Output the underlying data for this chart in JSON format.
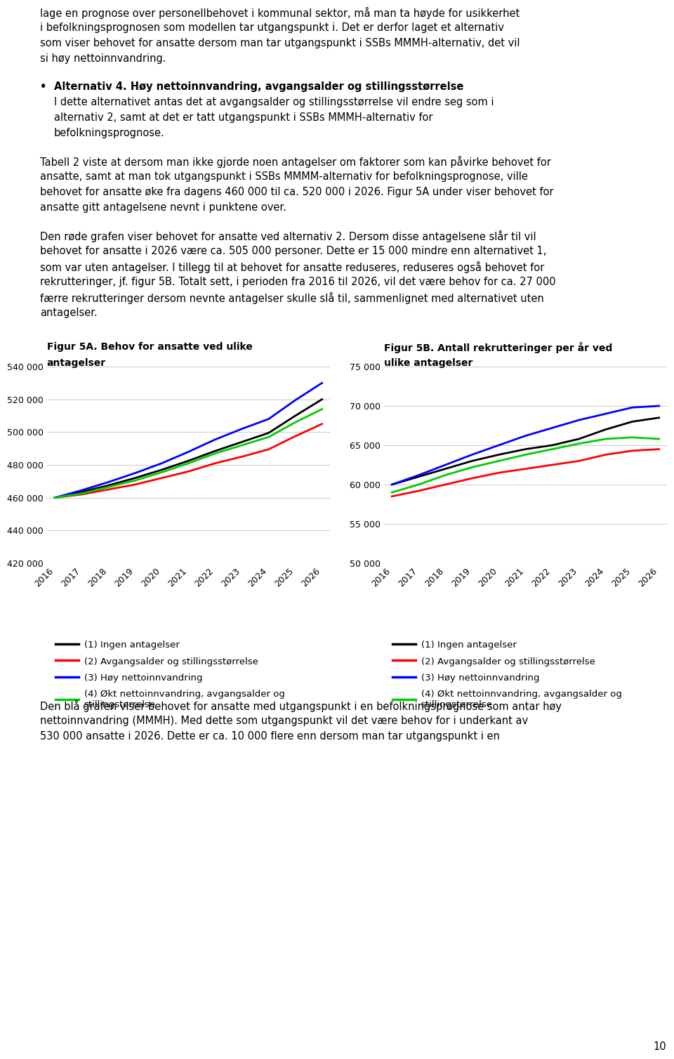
{
  "years": [
    2016,
    2017,
    2018,
    2019,
    2020,
    2021,
    2022,
    2023,
    2024,
    2025,
    2026
  ],
  "fig5a_title_line1": "Figur 5A. Behov for ansatte ved ulike",
  "fig5a_title_line2": "antagelser",
  "fig5a_ylim": [
    420000,
    540000
  ],
  "fig5a_yticks": [
    420000,
    440000,
    460000,
    480000,
    500000,
    520000,
    540000
  ],
  "fig5a_ytick_labels": [
    "420 000",
    "440 000",
    "460 000",
    "480 000",
    "500 000",
    "520 000",
    "540 000"
  ],
  "fig5a_line1": [
    460000,
    463500,
    467500,
    472000,
    477000,
    482500,
    488500,
    494000,
    499500,
    510000,
    520000
  ],
  "fig5a_line2": [
    460000,
    462000,
    465000,
    468000,
    472000,
    476000,
    481000,
    485000,
    489500,
    497500,
    505000
  ],
  "fig5a_line3": [
    460000,
    464500,
    469500,
    475000,
    481000,
    488000,
    495500,
    502000,
    508000,
    519500,
    530000
  ],
  "fig5a_line4": [
    460000,
    462500,
    466500,
    470500,
    475500,
    481000,
    487000,
    492000,
    497000,
    506000,
    514000
  ],
  "fig5b_title_line1": "Figur 5B. Antall rekrutteringer per år ved",
  "fig5b_title_line2": "ulike antagelser",
  "fig5b_ylim": [
    50000,
    75000
  ],
  "fig5b_yticks": [
    50000,
    55000,
    60000,
    65000,
    70000,
    75000
  ],
  "fig5b_ytick_labels": [
    "50 000",
    "55 000",
    "60 000",
    "65 000",
    "70 000",
    "75 000"
  ],
  "fig5b_line1": [
    60000,
    61000,
    62000,
    63000,
    63800,
    64500,
    65000,
    65800,
    67000,
    68000,
    68500
  ],
  "fig5b_line2": [
    58500,
    59200,
    60000,
    60800,
    61500,
    62000,
    62500,
    63000,
    63800,
    64300,
    64500
  ],
  "fig5b_line3": [
    60000,
    61200,
    62500,
    63800,
    65000,
    66200,
    67200,
    68200,
    69000,
    69800,
    70000
  ],
  "fig5b_line4": [
    59000,
    60000,
    61200,
    62200,
    63000,
    63800,
    64500,
    65200,
    65800,
    66000,
    65800
  ],
  "line_colors": [
    "#000000",
    "#ff0000",
    "#0000ff",
    "#00cc00"
  ],
  "line_labels": [
    "(1) Ingen antagelser",
    "(2) Avgangsalder og stillingsstørrelse",
    "(3) Høy nettoinnvandring",
    "(4) Økt nettoinnvandring, avgangsalder og\nstillingstørrelse"
  ],
  "background_color": "#ffffff",
  "font_size_body": 10.5,
  "font_size_chart_title": 10.0,
  "font_size_axis": 9.0,
  "font_size_legend": 9.5,
  "page_number": "10"
}
